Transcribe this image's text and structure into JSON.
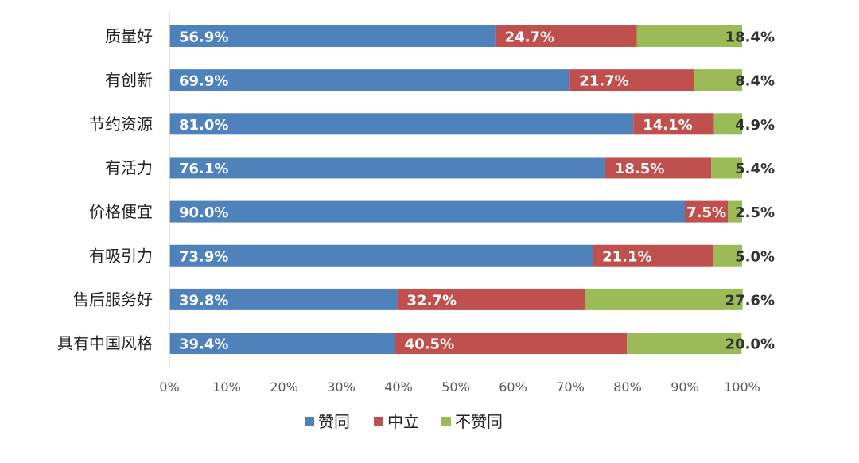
{
  "chart_data": {
    "type": "bar",
    "orientation": "horizontal",
    "stacked": true,
    "categories": [
      "质量好",
      "有创新",
      "节约资源",
      "有活力",
      "价格便宜",
      "有吸引力",
      "售后服务好",
      "具有中国风格"
    ],
    "series": [
      {
        "name": "赞同",
        "color": "#4f81bd",
        "values": [
          56.9,
          69.9,
          81.0,
          76.1,
          90.0,
          73.9,
          39.8,
          39.4
        ]
      },
      {
        "name": "中立",
        "color": "#c0504d",
        "values": [
          24.7,
          21.7,
          14.1,
          18.5,
          7.5,
          21.1,
          32.7,
          40.5
        ]
      },
      {
        "name": "不赞同",
        "color": "#9bbb59",
        "values": [
          18.4,
          8.4,
          4.9,
          5.4,
          2.5,
          5.0,
          27.6,
          20.0
        ]
      }
    ],
    "xlim": [
      0,
      100
    ],
    "x_ticks": [
      "0%",
      "10%",
      "20%",
      "30%",
      "40%",
      "50%",
      "60%",
      "70%",
      "80%",
      "90%",
      "100%"
    ],
    "legend_position": "bottom",
    "grid": false
  }
}
